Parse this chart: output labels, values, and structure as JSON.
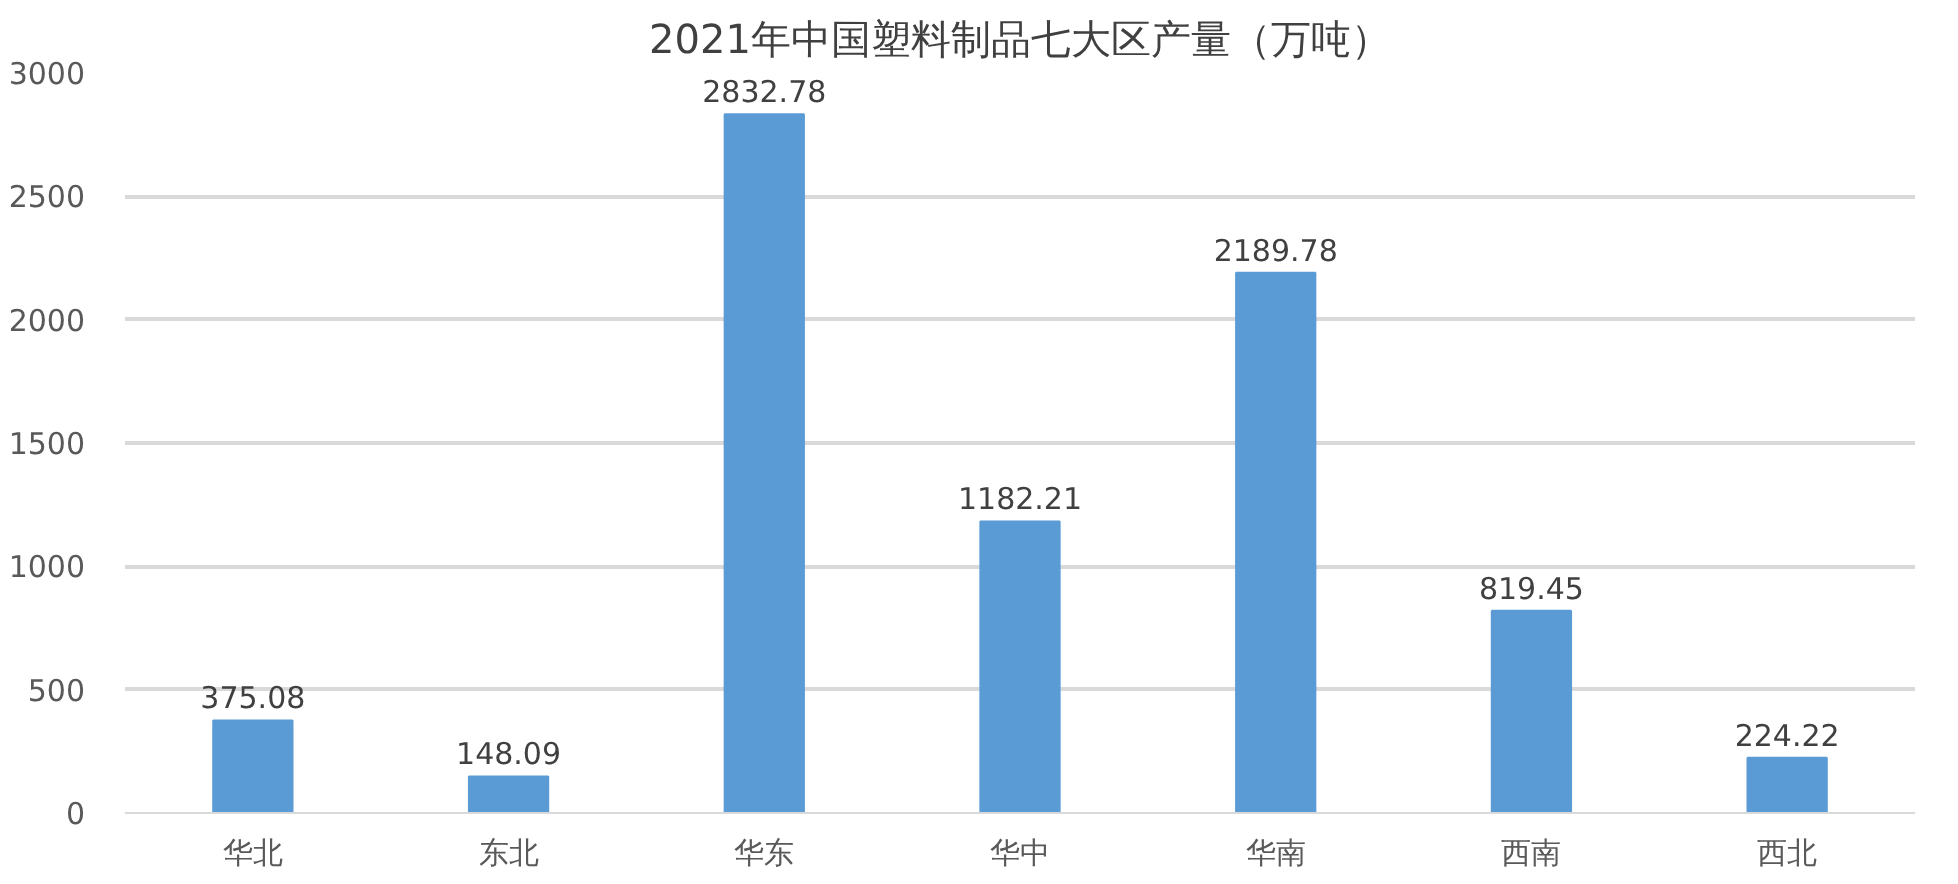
{
  "chart_data": {
    "type": "bar",
    "title": "2021年中国塑料制品七大区产量（万吨）",
    "categories": [
      "华北",
      "东北",
      "华东",
      "华中",
      "华南",
      "西南",
      "西北"
    ],
    "values": [
      375.08,
      148.09,
      2832.78,
      1182.21,
      2189.78,
      819.45,
      224.22
    ],
    "color": "#5b9bd5",
    "ylim": [
      0,
      3000
    ],
    "yticks": [
      0,
      500,
      1000,
      1500,
      2000,
      2500,
      3000
    ],
    "grid": "y",
    "data_labels": true
  }
}
